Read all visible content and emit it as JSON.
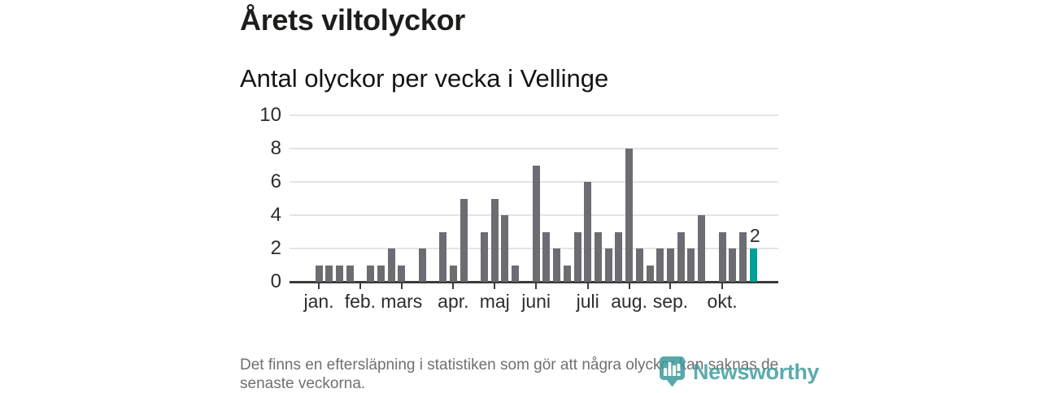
{
  "chart_data": {
    "type": "bar",
    "title": "Årets viltolyckor",
    "subtitle": "Antal olyckor per vecka i Vellinge",
    "x_unit": "vecka",
    "n_weeks": 43,
    "values": [
      1,
      1,
      1,
      1,
      0,
      1,
      1,
      2,
      1,
      0,
      2,
      0,
      3,
      1,
      5,
      0,
      3,
      5,
      4,
      1,
      0,
      7,
      3,
      2,
      1,
      3,
      6,
      3,
      2,
      3,
      8,
      2,
      1,
      2,
      2,
      3,
      2,
      4,
      0,
      3,
      2,
      3,
      2
    ],
    "ylim": [
      0,
      10
    ],
    "yticks": [
      0,
      2,
      4,
      6,
      8,
      10
    ],
    "month_ticks": [
      {
        "label": "jan.",
        "week": 0
      },
      {
        "label": "feb.",
        "week": 4
      },
      {
        "label": "mars",
        "week": 8
      },
      {
        "label": "apr.",
        "week": 13
      },
      {
        "label": "maj",
        "week": 17
      },
      {
        "label": "juni",
        "week": 21
      },
      {
        "label": "juli",
        "week": 26
      },
      {
        "label": "aug.",
        "week": 30
      },
      {
        "label": "sep.",
        "week": 34
      },
      {
        "label": "okt.",
        "week": 39
      }
    ],
    "highlight_last_bar": true,
    "last_bar_label": "2",
    "legend": "none",
    "grid": "horizontal",
    "colors": {
      "bar": "#6d6c72",
      "highlight": "#00a09a",
      "gridline": "#e4e4e4",
      "axis": "#3b3b3b"
    }
  },
  "footnote": {
    "lines": [
      "Det finns en eftersläpning i statistiken som gör att några olyckor kan saknas de",
      "senaste veckorna."
    ]
  },
  "logo": {
    "wordmark": "Newsworthy",
    "color": "#3f9b9e",
    "icon": "newsworthy-pin-barchart-icon"
  }
}
